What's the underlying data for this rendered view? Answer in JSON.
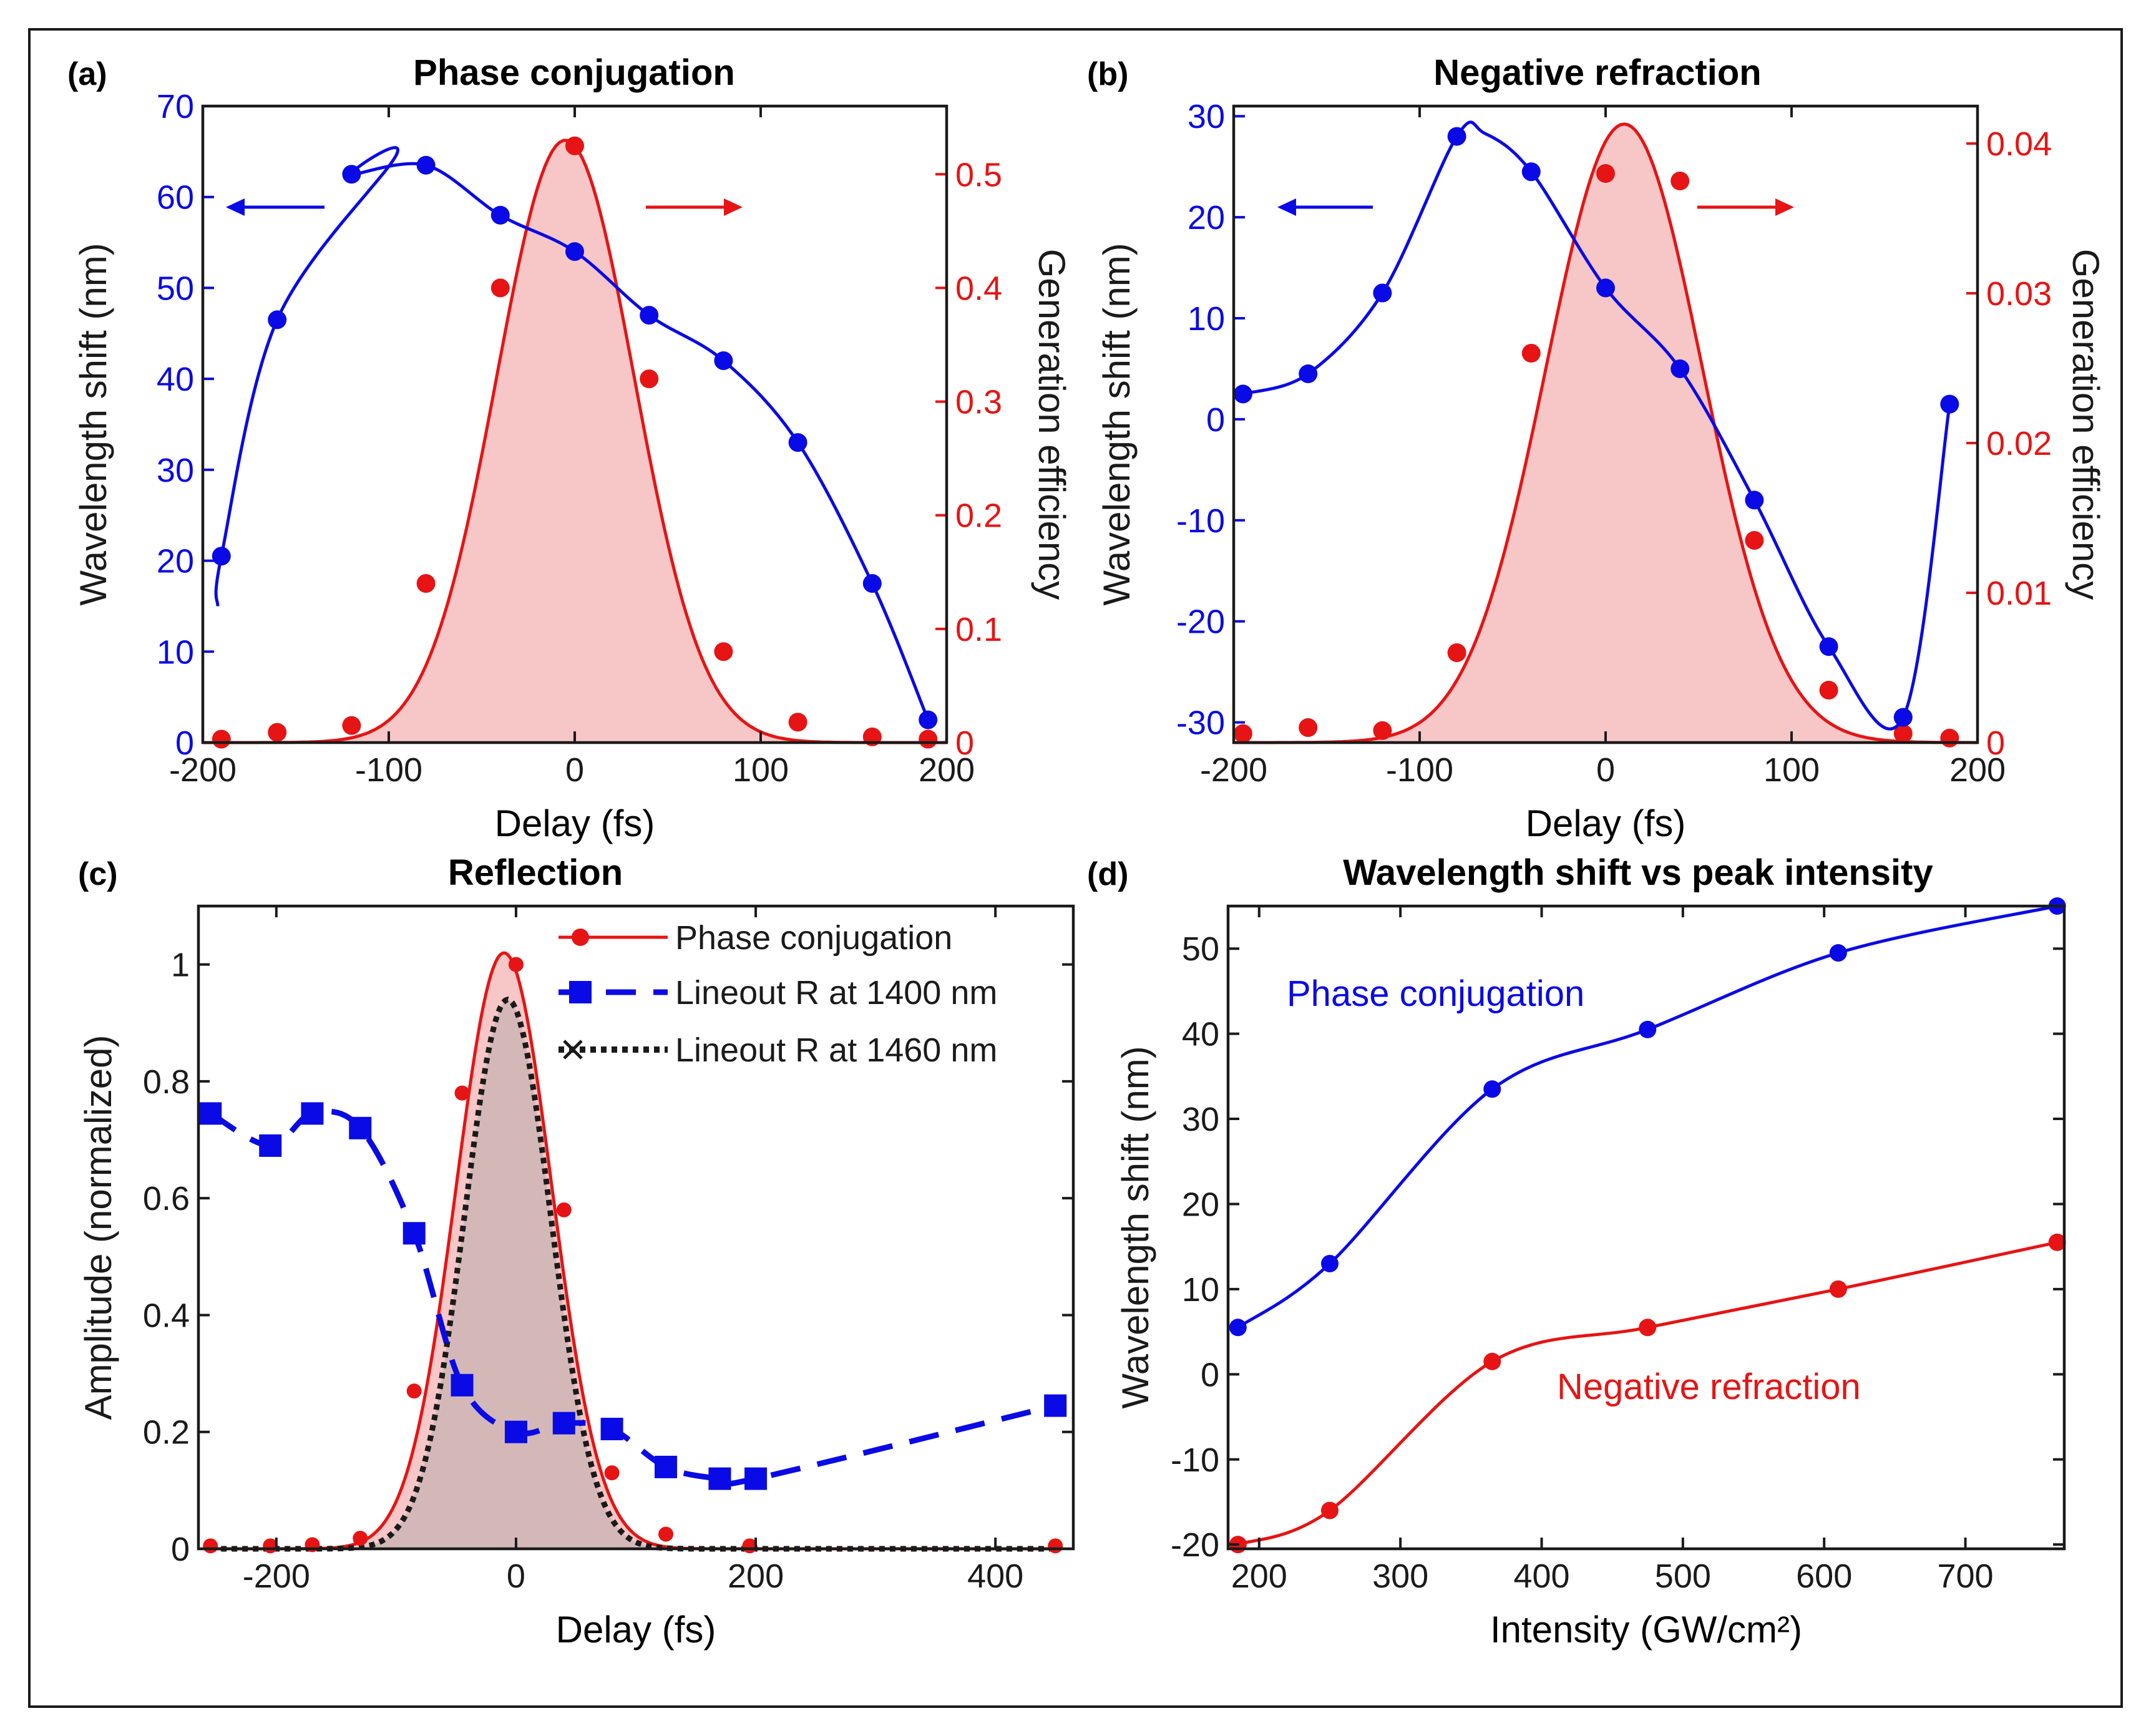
{
  "panels": {
    "a": {
      "label": "(a)",
      "title": "Phase conjugation",
      "xlabel": "Delay (fs)",
      "ylabel_left": "Wavelength shift (nm)",
      "ylabel_right": "Generation efficiency",
      "xticks": [
        "-200",
        "-100",
        "0",
        "100",
        "200"
      ],
      "yticks_left": [
        "0",
        "10",
        "20",
        "30",
        "40",
        "50",
        "60",
        "70"
      ],
      "yticks_right": [
        "0",
        "0.1",
        "0.2",
        "0.3",
        "0.4",
        "0.5"
      ]
    },
    "b": {
      "label": "(b)",
      "title": "Negative refraction",
      "xlabel": "Delay (fs)",
      "ylabel_left": "Wavelength shift (nm)",
      "ylabel_right": "Generation efficiency",
      "xticks": [
        "-200",
        "-100",
        "0",
        "100",
        "200"
      ],
      "yticks_left": [
        "-30",
        "-20",
        "-10",
        "0",
        "10",
        "20",
        "30"
      ],
      "yticks_right": [
        "0",
        "0.01",
        "0.02",
        "0.03",
        "0.04"
      ]
    },
    "c": {
      "label": "(c)",
      "title": "Reflection",
      "xlabel": "Delay (fs)",
      "ylabel": "Amplitude (normalized)",
      "xticks": [
        "-200",
        "0",
        "200",
        "400"
      ],
      "yticks": [
        "0",
        "0.2",
        "0.4",
        "0.6",
        "0.8",
        "1"
      ],
      "legend": [
        "Phase conjugation",
        "Lineout R at 1400 nm",
        "Lineout R at 1460 nm"
      ]
    },
    "d": {
      "label": "(d)",
      "title": "Wavelength shift vs peak intensity",
      "xlabel": "Intensity (GW/cm²)",
      "ylabel": "Wavelength shift (nm)",
      "xticks": [
        "200",
        "300",
        "400",
        "500",
        "600",
        "700"
      ],
      "yticks": [
        "-20",
        "-10",
        "0",
        "10",
        "20",
        "30",
        "40",
        "50"
      ],
      "annotations": [
        "Phase conjugation",
        "Negative refraction"
      ]
    }
  },
  "colors": {
    "blue": "#0a0ae6",
    "red": "#e61414",
    "fill_red": "#f7c6c6",
    "fill_brown": "#d4b8b8",
    "axis": "#1a1a1a"
  },
  "chart_data": [
    {
      "type": "line",
      "panel": "a",
      "title": "Phase conjugation",
      "xlabel": "Delay (fs)",
      "xlim": [
        -200,
        200
      ],
      "series": [
        {
          "name": "Wavelength shift (nm)",
          "axis": "left",
          "ylim": [
            0,
            70
          ],
          "x": [
            -190,
            -160,
            -120,
            -80,
            -40,
            0,
            40,
            80,
            120,
            160,
            190
          ],
          "y": [
            20.5,
            46.5,
            62.5,
            63.5,
            58,
            54,
            47,
            42,
            33,
            17.5,
            2.5
          ]
        },
        {
          "name": "Generation efficiency",
          "axis": "right",
          "ylim": [
            0,
            0.56
          ],
          "x": [
            -190,
            -160,
            -120,
            -80,
            -40,
            0,
            40,
            80,
            120,
            160,
            190
          ],
          "y": [
            0.003,
            0.009,
            0.015,
            0.14,
            0.4,
            0.525,
            0.32,
            0.08,
            0.018,
            0.005,
            0.003
          ]
        }
      ]
    },
    {
      "type": "line",
      "panel": "b",
      "title": "Negative refraction",
      "xlabel": "Delay (fs)",
      "xlim": [
        -200,
        200
      ],
      "series": [
        {
          "name": "Wavelength shift (nm)",
          "axis": "left",
          "ylim": [
            -32,
            31
          ],
          "x": [
            -195,
            -160,
            -120,
            -80,
            -40,
            0,
            40,
            80,
            120,
            160,
            185
          ],
          "y": [
            2.5,
            4.5,
            12.5,
            28,
            24.5,
            13,
            5,
            -8,
            -22.5,
            -29.5,
            1.5
          ]
        },
        {
          "name": "Generation efficiency",
          "axis": "right",
          "ylim": [
            0,
            0.0425
          ],
          "x": [
            -195,
            -160,
            -120,
            -80,
            -40,
            0,
            40,
            80,
            120,
            160,
            185
          ],
          "y": [
            0.0006,
            0.001,
            0.0008,
            0.006,
            0.026,
            0.038,
            0.0375,
            0.0135,
            0.0035,
            0.0006,
            0.0003
          ]
        }
      ]
    },
    {
      "type": "line",
      "panel": "c",
      "title": "Reflection",
      "xlabel": "Delay (fs)",
      "ylabel": "Amplitude (normalized)",
      "xlim": [
        -265,
        465
      ],
      "ylim": [
        0,
        1.1
      ],
      "legend_position": "top-right",
      "series": [
        {
          "name": "Phase conjugation",
          "x": [
            -255,
            -205,
            -170,
            -130,
            -85,
            -45,
            0,
            40,
            80,
            125,
            195,
            450
          ],
          "y": [
            0.005,
            0.005,
            0.007,
            0.018,
            0.27,
            0.78,
            1.0,
            0.58,
            0.13,
            0.025,
            0.005,
            0.005
          ]
        },
        {
          "name": "Lineout R at 1400 nm",
          "x": [
            -255,
            -205,
            -170,
            -130,
            -85,
            -45,
            0,
            40,
            80,
            125,
            170,
            200,
            450
          ],
          "y": [
            0.745,
            0.69,
            0.745,
            0.72,
            0.54,
            0.28,
            0.2,
            0.215,
            0.205,
            0.14,
            0.12,
            0.12,
            0.245
          ]
        },
        {
          "name": "Lineout R at 1460 nm",
          "x": [
            -255,
            -150,
            -120,
            -100,
            -80,
            -60,
            -40,
            -20,
            0,
            20,
            40,
            60,
            80,
            100,
            130,
            200,
            450
          ],
          "y": [
            0.002,
            0.004,
            0.015,
            0.06,
            0.17,
            0.39,
            0.66,
            0.87,
            0.94,
            0.86,
            0.64,
            0.35,
            0.13,
            0.04,
            0.008,
            0.002,
            0.002
          ]
        }
      ]
    },
    {
      "type": "line",
      "panel": "d",
      "title": "Wavelength shift vs peak intensity",
      "xlabel": "Intensity (GW/cm²)",
      "ylabel": "Wavelength shift (nm)",
      "xlim": [
        178,
        770
      ],
      "ylim": [
        -20.5,
        55
      ],
      "series": [
        {
          "name": "Phase conjugation",
          "x": [
            185,
            250,
            365,
            475,
            610,
            765
          ],
          "y": [
            5.5,
            13,
            33.5,
            40.5,
            49.5,
            55
          ]
        },
        {
          "name": "Negative refraction",
          "x": [
            185,
            250,
            365,
            475,
            610,
            765
          ],
          "y": [
            -20,
            -16,
            1.5,
            5.5,
            10,
            15.5
          ]
        }
      ]
    }
  ]
}
